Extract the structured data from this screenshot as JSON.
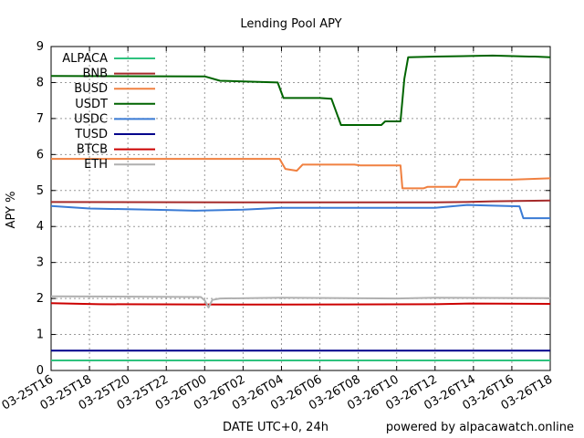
{
  "chart_data": {
    "type": "line",
    "title": "Lending Pool APY",
    "xlabel": "DATE UTC+0, 24h",
    "ylabel": "APY %",
    "footer": "powered by alpacawatch.online",
    "ylim": [
      0,
      9
    ],
    "xlim": [
      "03-25T16",
      "03-26T18"
    ],
    "x_ticks": [
      "03-25T16",
      "03-25T18",
      "03-25T20",
      "03-25T22",
      "03-26T00",
      "03-26T02",
      "03-26T04",
      "03-26T06",
      "03-26T08",
      "03-26T10",
      "03-26T12",
      "03-26T14",
      "03-26T16",
      "03-26T18"
    ],
    "y_ticks": [
      "0",
      "1",
      "2",
      "3",
      "4",
      "5",
      "6",
      "7",
      "8",
      "9"
    ],
    "grid": true,
    "legend_position": "top-left",
    "x_unit_note": "x = hours after 03-25T16",
    "series": [
      {
        "name": "ALPACA",
        "color": "#2ec27e",
        "points": [
          [
            0,
            0.28
          ],
          [
            26,
            0.28
          ]
        ]
      },
      {
        "name": "BNB",
        "color": "#a52a2a",
        "points": [
          [
            0,
            4.68
          ],
          [
            11,
            4.67
          ],
          [
            20,
            4.67
          ],
          [
            21.6,
            4.68
          ],
          [
            23,
            4.7
          ],
          [
            26,
            4.72
          ]
        ]
      },
      {
        "name": "BUSD",
        "color": "#f08040",
        "points": [
          [
            0,
            5.88
          ],
          [
            11.9,
            5.88
          ],
          [
            12.2,
            5.6
          ],
          [
            12.8,
            5.55
          ],
          [
            13.1,
            5.72
          ],
          [
            15.8,
            5.72
          ],
          [
            16.1,
            5.7
          ],
          [
            18.2,
            5.7
          ],
          [
            18.3,
            5.06
          ],
          [
            19.4,
            5.06
          ],
          [
            19.6,
            5.1
          ],
          [
            21.1,
            5.1
          ],
          [
            21.3,
            5.3
          ],
          [
            24,
            5.3
          ],
          [
            26,
            5.34
          ]
        ]
      },
      {
        "name": "USDT",
        "color": "#006400",
        "points": [
          [
            0,
            8.18
          ],
          [
            8,
            8.17
          ],
          [
            8.8,
            8.05
          ],
          [
            11.8,
            8.0
          ],
          [
            12.1,
            7.57
          ],
          [
            14,
            7.57
          ],
          [
            14.6,
            7.55
          ],
          [
            15.1,
            6.82
          ],
          [
            17.2,
            6.82
          ],
          [
            17.4,
            6.92
          ],
          [
            18.2,
            6.92
          ],
          [
            18.4,
            8.1
          ],
          [
            18.6,
            8.7
          ],
          [
            20,
            8.72
          ],
          [
            23,
            8.75
          ],
          [
            24.9,
            8.72
          ],
          [
            25.2,
            8.72
          ],
          [
            26,
            8.7
          ]
        ]
      },
      {
        "name": "USDC",
        "color": "#3a7bd5",
        "points": [
          [
            0,
            4.57
          ],
          [
            2,
            4.5
          ],
          [
            6,
            4.46
          ],
          [
            7.5,
            4.44
          ],
          [
            10,
            4.47
          ],
          [
            12,
            4.52
          ],
          [
            20,
            4.52
          ],
          [
            21.7,
            4.6
          ],
          [
            22.8,
            4.58
          ],
          [
            24.4,
            4.56
          ],
          [
            24.6,
            4.23
          ],
          [
            26,
            4.23
          ]
        ]
      },
      {
        "name": "TUSD",
        "color": "#00008b",
        "points": [
          [
            0,
            0.55
          ],
          [
            26,
            0.55
          ]
        ]
      },
      {
        "name": "BTCB",
        "color": "#cc0000",
        "points": [
          [
            0,
            1.87
          ],
          [
            2.5,
            1.84
          ],
          [
            12,
            1.83
          ],
          [
            20,
            1.84
          ],
          [
            21.8,
            1.86
          ],
          [
            26,
            1.85
          ]
        ]
      },
      {
        "name": "ETH",
        "color": "#b0b0b0",
        "points": [
          [
            0,
            2.06
          ],
          [
            7.8,
            2.04
          ],
          [
            8,
            1.95
          ],
          [
            8.2,
            1.75
          ],
          [
            8.4,
            1.96
          ],
          [
            8.8,
            2.0
          ],
          [
            12,
            2.02
          ],
          [
            18,
            2.0
          ],
          [
            20,
            2.02
          ],
          [
            26,
            2.01
          ]
        ]
      }
    ]
  }
}
